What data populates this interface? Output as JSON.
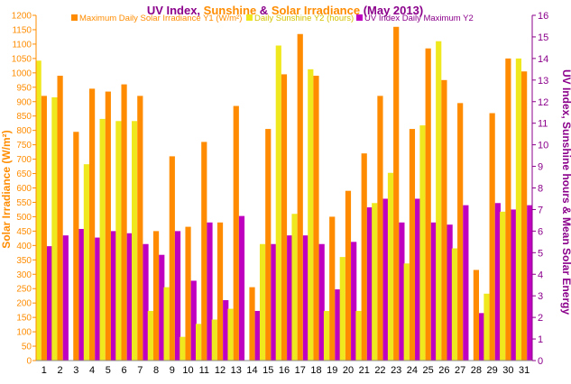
{
  "chart_data": {
    "type": "bar",
    "title_parts": [
      {
        "text": "UV Index, ",
        "color": "#8B008B"
      },
      {
        "text": "Sunshine",
        "color": "#FF8C00"
      },
      {
        "text": " & ",
        "color": "#8B008B"
      },
      {
        "text": "Solar Irradiance",
        "color": "#FF8C00"
      },
      {
        "text": " (May 2013)",
        "color": "#8B008B"
      }
    ],
    "ylabel": "Solar Irradiance (W/m²)",
    "y2label": "UV Index, Sunshine hours & Mean Solar Energy",
    "ylim": [
      0,
      1200
    ],
    "y2lim": [
      0,
      16
    ],
    "yticks": [
      0,
      50,
      100,
      150,
      200,
      250,
      300,
      350,
      400,
      450,
      500,
      550,
      600,
      650,
      700,
      750,
      800,
      850,
      900,
      950,
      1000,
      1050,
      1100,
      1150,
      1200
    ],
    "y2ticks": [
      0,
      1,
      2,
      3,
      4,
      5,
      6,
      7,
      8,
      9,
      10,
      11,
      12,
      13,
      14,
      15,
      16
    ],
    "categories": [
      "1",
      "2",
      "3",
      "4",
      "5",
      "6",
      "7",
      "8",
      "9",
      "10",
      "11",
      "12",
      "13",
      "14",
      "15",
      "16",
      "17",
      "18",
      "19",
      "20",
      "21",
      "22",
      "23",
      "24",
      "25",
      "26",
      "27",
      "28",
      "29",
      "30",
      "31"
    ],
    "grid": false,
    "legend_position": "top-center",
    "series": [
      {
        "name": "Maximum Daily Solar Irradiance Y1 (W/m²)",
        "axis": "y1",
        "color": "#FF8C00",
        "values": [
          920,
          990,
          795,
          945,
          935,
          960,
          920,
          450,
          710,
          465,
          760,
          480,
          885,
          255,
          805,
          995,
          1135,
          990,
          500,
          590,
          720,
          920,
          1160,
          805,
          1085,
          975,
          895,
          315,
          860,
          1050,
          1005
        ]
      },
      {
        "name": "Daily Sunshine Y2 (hours)",
        "axis": "y2",
        "color": "#F0E81E",
        "values": [
          13.9,
          12.2,
          0,
          9.1,
          11.2,
          11.1,
          11.1,
          2.3,
          3.4,
          1.1,
          1.7,
          1.9,
          2.4,
          0,
          5.4,
          14.6,
          6.8,
          13.5,
          2.3,
          4.8,
          2.3,
          7.3,
          8.7,
          4.5,
          10.9,
          14.8,
          5.2,
          0,
          3.1,
          6.9,
          14.0
        ]
      },
      {
        "name": "UV Index Daily Maximum Y2",
        "axis": "y2",
        "color": "#C000C0",
        "values": [
          5.3,
          5.8,
          6.1,
          5.7,
          6.0,
          5.9,
          5.4,
          4.9,
          6.0,
          3.7,
          6.4,
          2.8,
          6.7,
          2.3,
          5.4,
          5.8,
          5.8,
          5.4,
          3.3,
          5.5,
          7.1,
          7.5,
          6.4,
          7.5,
          6.4,
          6.3,
          7.2,
          2.2,
          7.3,
          7.0,
          7.2
        ]
      }
    ]
  }
}
